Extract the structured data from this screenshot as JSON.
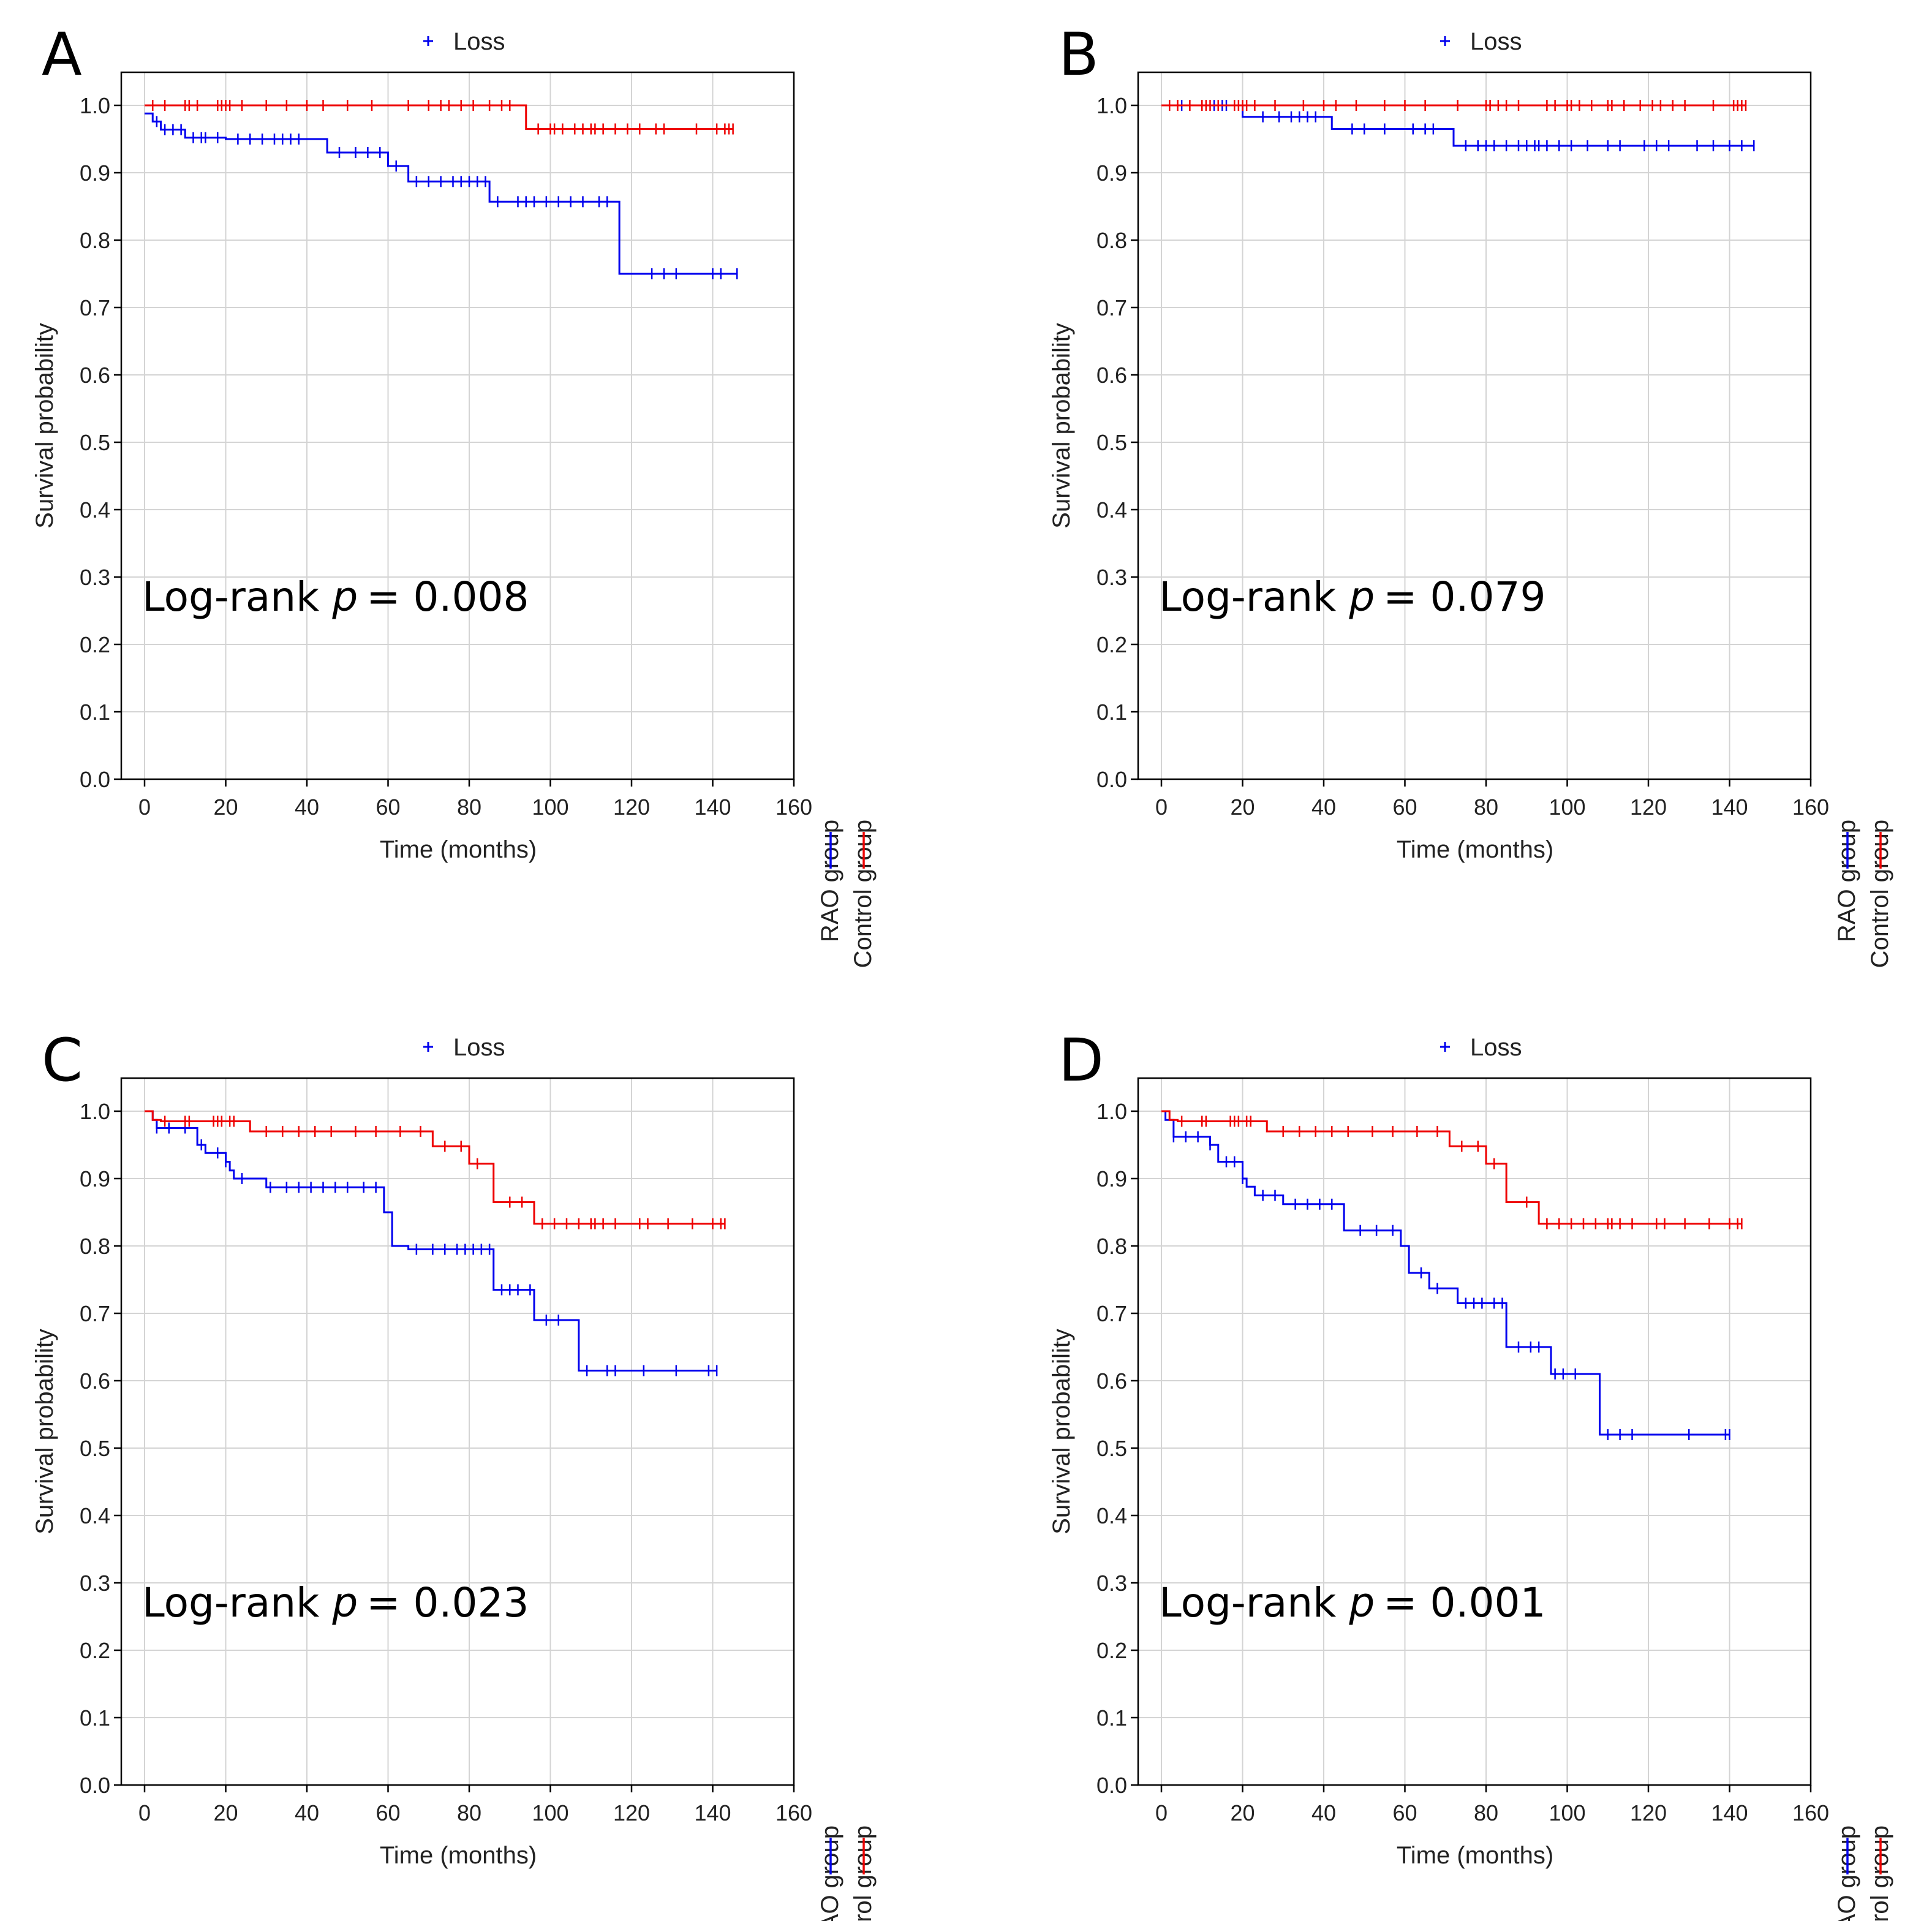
{
  "colors": {
    "rao": "#0000ee",
    "control": "#ee0000",
    "grid": "#d4d4d4",
    "frame": "#000000"
  },
  "chart_data": [
    {
      "type": "line",
      "step": true,
      "panel": "A",
      "legend_title": "Loss",
      "logrank_prefix": "Log-rank ",
      "p_symbol": "p",
      "p_value": "= 0.008",
      "xlabel": "Time (months)",
      "ylabel": "Survival probability",
      "xlim": [
        0,
        160
      ],
      "ylim": [
        0,
        1.0
      ],
      "xticks": [
        0,
        20,
        40,
        60,
        80,
        100,
        120,
        140,
        160
      ],
      "yticks": [
        0.0,
        0.1,
        0.2,
        0.3,
        0.4,
        0.5,
        0.6,
        0.7,
        0.8,
        0.9,
        1.0
      ],
      "series": [
        {
          "name": "RAO group",
          "color_key": "rao",
          "x": [
            0,
            2,
            4,
            10,
            20,
            45,
            60,
            65,
            85,
            117,
            146
          ],
          "y": [
            0.988,
            0.976,
            0.964,
            0.952,
            0.95,
            0.93,
            0.91,
            0.887,
            0.857,
            0.75,
            0.75
          ],
          "censored": [
            3,
            5,
            7,
            9,
            12,
            14,
            15,
            18,
            23,
            26,
            29,
            32,
            34,
            36,
            38,
            48,
            52,
            55,
            58,
            62,
            67,
            70,
            73,
            76,
            78,
            80,
            82,
            84,
            87,
            92,
            94,
            96,
            99,
            102,
            105,
            108,
            112,
            114,
            125,
            128,
            131,
            140,
            142,
            146
          ]
        },
        {
          "name": "Control group",
          "color_key": "control",
          "x": [
            0,
            94,
            145
          ],
          "y": [
            1.0,
            0.965,
            0.965
          ],
          "censored": [
            2,
            5,
            10,
            11,
            13,
            18,
            19,
            20,
            21,
            24,
            30,
            35,
            40,
            44,
            50,
            56,
            65,
            70,
            73,
            75,
            78,
            81,
            85,
            88,
            90,
            97,
            100,
            101,
            103,
            106,
            108,
            110,
            111,
            113,
            116,
            119,
            122,
            126,
            128,
            136,
            141,
            143,
            144,
            145
          ]
        }
      ]
    },
    {
      "type": "line",
      "step": true,
      "panel": "B",
      "legend_title": "Loss",
      "logrank_prefix": "Log-rank ",
      "p_symbol": "p",
      "p_value": "= 0.079",
      "xlabel": "Time (months)",
      "ylabel": "Survival probability",
      "xlim": [
        0,
        160
      ],
      "ylim": [
        0,
        1.0
      ],
      "xticks": [
        0,
        20,
        40,
        60,
        80,
        100,
        120,
        140,
        160
      ],
      "yticks": [
        0.0,
        0.1,
        0.2,
        0.3,
        0.4,
        0.5,
        0.6,
        0.7,
        0.8,
        0.9,
        1.0
      ],
      "series": [
        {
          "name": "RAO group",
          "color_key": "rao",
          "x": [
            0,
            20,
            42,
            72,
            146
          ],
          "y": [
            1.0,
            0.983,
            0.965,
            0.94,
            0.94
          ],
          "censored": [
            5,
            10,
            13,
            15,
            16,
            25,
            29,
            32,
            34,
            36,
            38,
            47,
            50,
            55,
            62,
            65,
            67,
            75,
            78,
            80,
            82,
            85,
            88,
            90,
            92,
            93,
            95,
            98,
            101,
            105,
            110,
            113,
            119,
            122,
            125,
            132,
            136,
            140,
            143,
            146
          ]
        },
        {
          "name": "Control group",
          "color_key": "control",
          "x": [
            0,
            144
          ],
          "y": [
            1.0,
            1.0
          ],
          "censored": [
            2,
            4,
            7,
            10,
            11,
            12,
            14,
            18,
            19,
            20,
            21,
            23,
            28,
            35,
            40,
            43,
            48,
            55,
            60,
            65,
            73,
            80,
            81,
            83,
            85,
            88,
            95,
            97,
            100,
            101,
            103,
            106,
            110,
            111,
            114,
            118,
            121,
            123,
            126,
            129,
            136,
            141,
            142,
            143,
            144
          ]
        }
      ]
    },
    {
      "type": "line",
      "step": true,
      "panel": "C",
      "legend_title": "Loss",
      "logrank_prefix": "Log-rank ",
      "p_symbol": "p",
      "p_value": "= 0.023",
      "xlabel": "Time (months)",
      "ylabel": "Survival probability",
      "xlim": [
        0,
        160
      ],
      "ylim": [
        0,
        1.0
      ],
      "xticks": [
        0,
        20,
        40,
        60,
        80,
        100,
        120,
        140,
        160
      ],
      "yticks": [
        0.0,
        0.1,
        0.2,
        0.3,
        0.4,
        0.5,
        0.6,
        0.7,
        0.8,
        0.9,
        1.0
      ],
      "series": [
        {
          "name": "RAO group",
          "color_key": "rao",
          "x": [
            0,
            2,
            3,
            13,
            15,
            20,
            21,
            22,
            30,
            59,
            61,
            65,
            86,
            96,
            107,
            141
          ],
          "y": [
            1.0,
            0.987,
            0.975,
            0.95,
            0.938,
            0.925,
            0.912,
            0.9,
            0.887,
            0.85,
            0.8,
            0.795,
            0.735,
            0.69,
            0.615,
            0.615
          ],
          "censored": [
            3,
            6,
            10,
            14,
            18,
            20,
            24,
            31,
            35,
            38,
            41,
            44,
            47,
            50,
            54,
            57,
            67,
            71,
            74,
            77,
            79,
            81,
            83,
            85,
            88,
            90,
            92,
            95,
            99,
            102,
            109,
            114,
            116,
            123,
            131,
            139,
            141
          ]
        },
        {
          "name": "Control group",
          "color_key": "control",
          "x": [
            0,
            2,
            4,
            26,
            71,
            80,
            86,
            96,
            143
          ],
          "y": [
            1.0,
            0.987,
            0.985,
            0.97,
            0.948,
            0.922,
            0.865,
            0.833,
            0.833
          ],
          "censored": [
            5,
            10,
            11,
            17,
            18,
            19,
            21,
            22,
            30,
            34,
            38,
            42,
            46,
            52,
            57,
            63,
            68,
            74,
            78,
            82,
            90,
            93,
            98,
            101,
            104,
            107,
            110,
            111,
            113,
            116,
            122,
            124,
            129,
            135,
            140,
            142,
            143
          ]
        }
      ]
    },
    {
      "type": "line",
      "step": true,
      "panel": "D",
      "legend_title": "Loss",
      "logrank_prefix": "Log-rank ",
      "p_symbol": "p",
      "p_value": "= 0.001",
      "xlabel": "Time (months)",
      "ylabel": "Survival probability",
      "xlim": [
        0,
        160
      ],
      "ylim": [
        0,
        1.0
      ],
      "xticks": [
        0,
        20,
        40,
        60,
        80,
        100,
        120,
        140,
        160
      ],
      "yticks": [
        0.0,
        0.1,
        0.2,
        0.3,
        0.4,
        0.5,
        0.6,
        0.7,
        0.8,
        0.9,
        1.0
      ],
      "series": [
        {
          "name": "RAO group",
          "color_key": "rao",
          "x": [
            0,
            1,
            3,
            12,
            14,
            20,
            21,
            23,
            30,
            45,
            59,
            61,
            66,
            73,
            85,
            96,
            108,
            140
          ],
          "y": [
            1.0,
            0.987,
            0.962,
            0.95,
            0.925,
            0.9,
            0.888,
            0.875,
            0.862,
            0.823,
            0.8,
            0.76,
            0.737,
            0.715,
            0.65,
            0.61,
            0.52,
            0.52
          ],
          "censored": [
            3,
            6,
            9,
            12,
            16,
            18,
            20,
            25,
            28,
            33,
            36,
            39,
            42,
            49,
            53,
            57,
            64,
            68,
            75,
            77,
            79,
            82,
            84,
            88,
            91,
            93,
            97,
            99,
            102,
            110,
            113,
            116,
            130,
            139,
            140
          ]
        },
        {
          "name": "Control group",
          "color_key": "control",
          "x": [
            0,
            2,
            4,
            26,
            71,
            80,
            85,
            93,
            143
          ],
          "y": [
            1.0,
            0.987,
            0.985,
            0.97,
            0.948,
            0.922,
            0.865,
            0.833,
            0.833
          ],
          "censored": [
            5,
            10,
            11,
            17,
            18,
            19,
            21,
            22,
            30,
            34,
            38,
            42,
            46,
            52,
            57,
            63,
            68,
            74,
            78,
            82,
            90,
            95,
            98,
            101,
            104,
            107,
            110,
            111,
            113,
            116,
            122,
            124,
            129,
            135,
            140,
            142,
            143
          ]
        }
      ]
    }
  ]
}
